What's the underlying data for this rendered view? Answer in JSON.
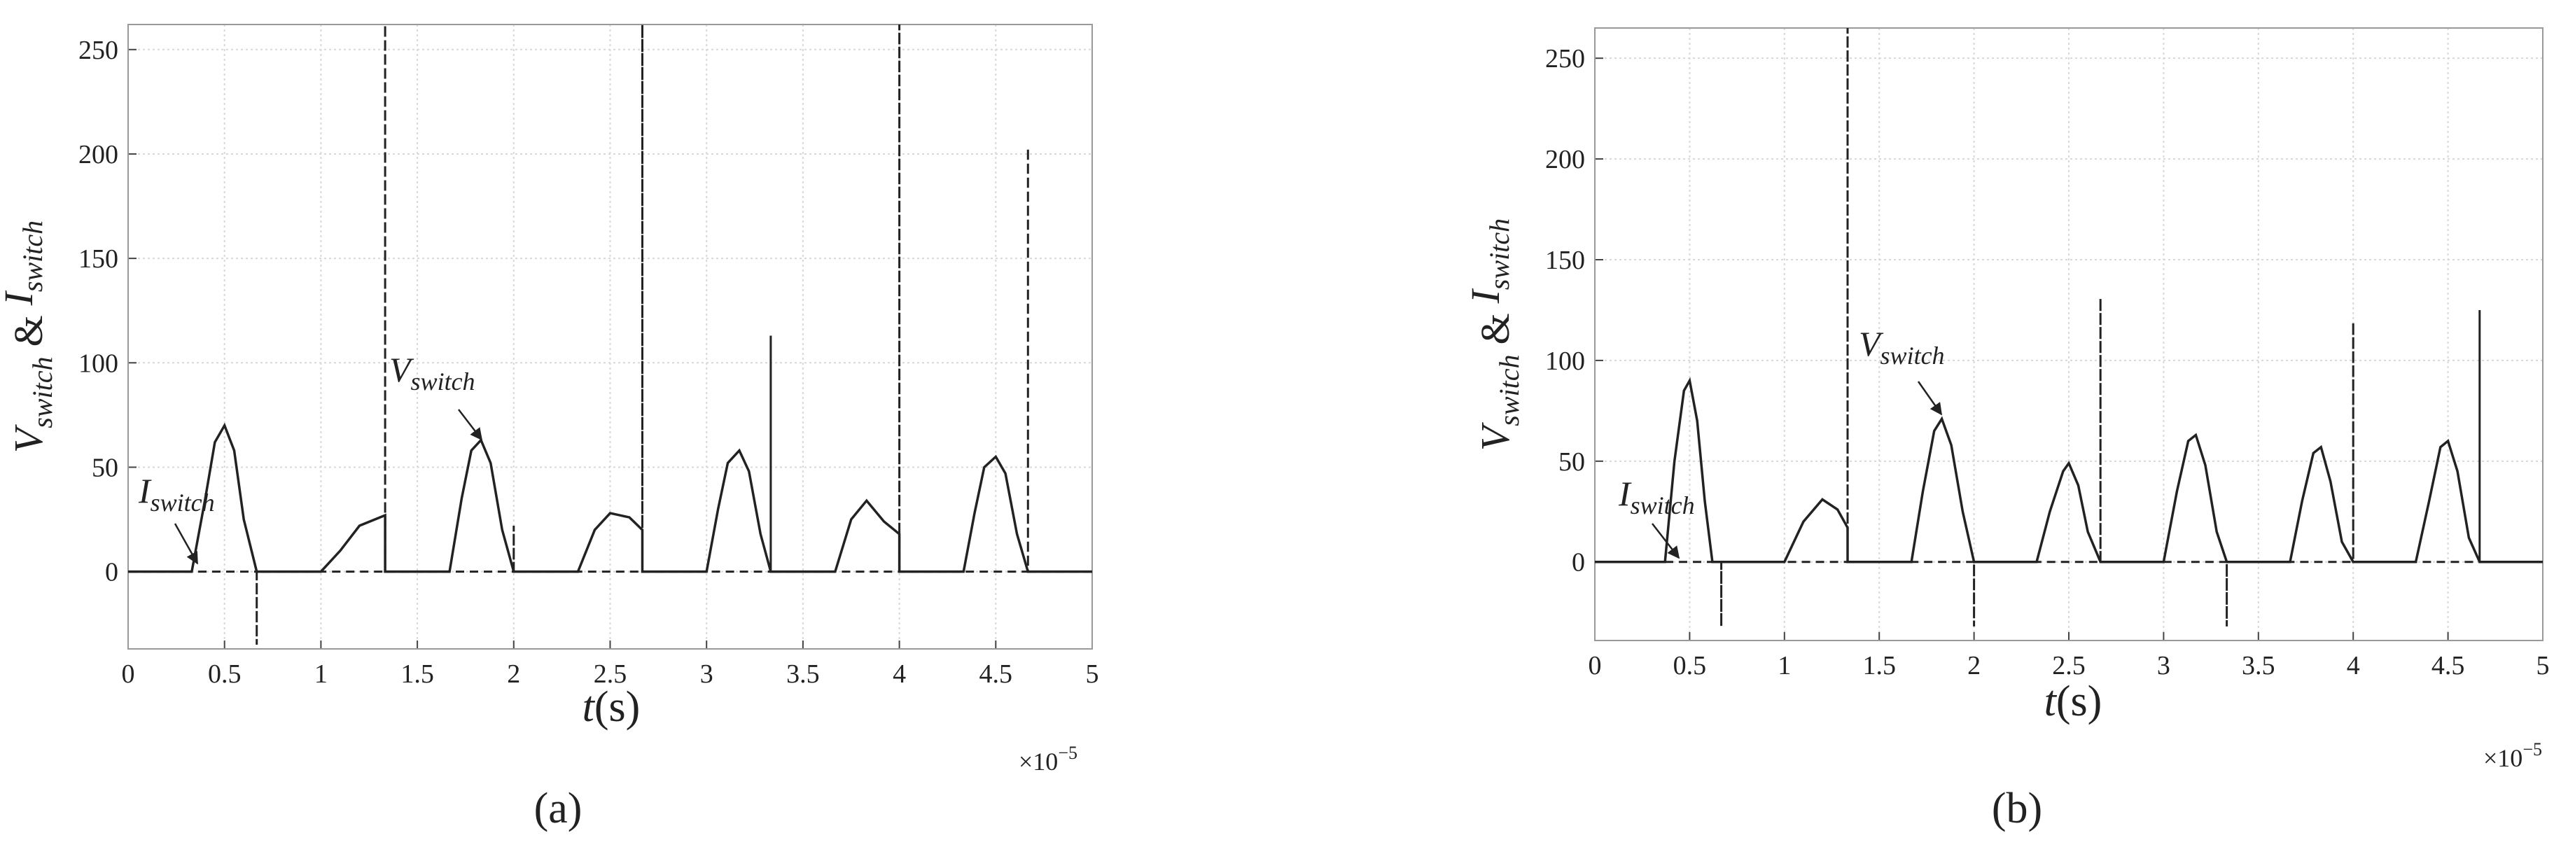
{
  "chart_data": [
    {
      "type": "line",
      "panel_label": "(a)",
      "x_label": {
        "var": "t",
        "unit": "(s)"
      },
      "x_multiplier": {
        "base": "×10",
        "exponent": "−5"
      },
      "y_label": {
        "v": "V",
        "v_sub": "switch",
        "amp": "&",
        "i": "I",
        "i_sub": "switch"
      },
      "annotations": [
        {
          "main": "V",
          "sub": "switch"
        },
        {
          "main": "I",
          "sub": "switch"
        }
      ],
      "xlim": [
        0,
        5
      ],
      "xticks": [
        0,
        0.5,
        1,
        1.5,
        2,
        2.5,
        3,
        3.5,
        4,
        4.5,
        5
      ],
      "ylim": [
        -37,
        262
      ],
      "yticks": [
        0,
        50,
        100,
        150,
        200,
        250
      ],
      "grid": true,
      "series": [
        {
          "color": "#222222",
          "dash": false,
          "x": [
            0,
            0.33,
            0.4,
            0.45,
            0.5,
            0.55,
            0.6,
            0.667,
            1.0,
            1.1,
            1.2,
            1.333,
            1.333,
            1.667,
            1.73,
            1.78,
            1.83,
            1.88,
            1.94,
            2.0,
            2.333,
            2.42,
            2.5,
            2.6,
            2.667,
            2.667,
            3.0,
            3.06,
            3.11,
            3.17,
            3.22,
            3.28,
            3.333,
            3.667,
            3.75,
            3.83,
            3.92,
            4.0,
            4.0,
            4.333,
            4.39,
            4.44,
            4.5,
            4.55,
            4.61,
            4.667,
            5
          ],
          "values": [
            0,
            0,
            35,
            62,
            70,
            58,
            25,
            0,
            0,
            10,
            22,
            27,
            0,
            0,
            35,
            58,
            63,
            52,
            20,
            0,
            0,
            20,
            28,
            26,
            20,
            0,
            0,
            30,
            52,
            58,
            48,
            18,
            0,
            0,
            25,
            34,
            24,
            18,
            0,
            0,
            28,
            50,
            55,
            47,
            18,
            0,
            0
          ]
        },
        {
          "color": "#222222",
          "dash": true,
          "x": [
            0,
            0.667,
            0.667,
            0.667,
            1.333,
            1.333,
            1.333,
            2.0,
            2.0,
            2.0,
            2.667,
            2.667,
            2.667,
            3.333,
            3.333,
            3.333,
            4.0,
            4.0,
            4.0,
            4.667,
            4.667,
            4.667,
            5
          ],
          "values": [
            0,
            0,
            -35,
            0,
            0,
            262,
            0,
            0,
            22,
            0,
            0,
            262,
            0,
            0,
            113,
            0,
            0,
            262,
            0,
            0,
            203,
            0,
            0
          ]
        }
      ]
    },
    {
      "type": "line",
      "panel_label": "(b)",
      "x_label": {
        "var": "t",
        "unit": "(s)"
      },
      "x_multiplier": {
        "base": "×10",
        "exponent": "−5"
      },
      "y_label": {
        "v": "V",
        "v_sub": "switch",
        "amp": "&",
        "i": "I",
        "i_sub": "switch"
      },
      "annotations": [
        {
          "main": "V",
          "sub": "switch"
        },
        {
          "main": "I",
          "sub": "switch"
        }
      ],
      "xlim": [
        0,
        5
      ],
      "xticks": [
        0,
        0.5,
        1,
        1.5,
        2,
        2.5,
        3,
        3.5,
        4,
        4.5,
        5
      ],
      "ylim": [
        -39,
        265
      ],
      "yticks": [
        0,
        50,
        100,
        150,
        200,
        250
      ],
      "grid": true,
      "series": [
        {
          "color": "#222222",
          "dash": false,
          "x": [
            0,
            0.37,
            0.42,
            0.47,
            0.5,
            0.54,
            0.58,
            0.62,
            1.0,
            1.1,
            1.2,
            1.28,
            1.333,
            1.333,
            1.67,
            1.73,
            1.79,
            1.83,
            1.88,
            1.94,
            2.0,
            2.33,
            2.4,
            2.47,
            2.5,
            2.55,
            2.6,
            2.667,
            3.0,
            3.07,
            3.13,
            3.17,
            3.22,
            3.28,
            3.333,
            3.667,
            3.73,
            3.79,
            3.83,
            3.88,
            3.94,
            4.0,
            4.33,
            4.4,
            4.46,
            4.5,
            4.55,
            4.61,
            4.667,
            5
          ],
          "values": [
            0,
            0,
            50,
            85,
            90,
            70,
            30,
            0,
            0,
            20,
            31,
            26,
            17,
            0,
            0,
            35,
            65,
            71,
            58,
            25,
            0,
            0,
            25,
            45,
            49,
            38,
            15,
            0,
            0,
            35,
            60,
            63,
            48,
            15,
            0,
            0,
            30,
            54,
            57,
            40,
            10,
            0,
            0,
            30,
            57,
            60,
            45,
            12,
            0,
            0
          ]
        },
        {
          "color": "#222222",
          "dash": true,
          "x": [
            0,
            0.667,
            0.667,
            0.667,
            1.333,
            1.333,
            1.333,
            2.0,
            2.0,
            2.0,
            2.667,
            2.667,
            2.667,
            3.333,
            3.333,
            3.333,
            4.0,
            4.0,
            4.0,
            4.667,
            4.667,
            4.667,
            5
          ],
          "values": [
            0,
            0,
            -32,
            0,
            0,
            265,
            0,
            0,
            -32,
            0,
            0,
            131,
            0,
            0,
            -32,
            0,
            0,
            119,
            0,
            0,
            125,
            0,
            0
          ]
        }
      ]
    }
  ]
}
